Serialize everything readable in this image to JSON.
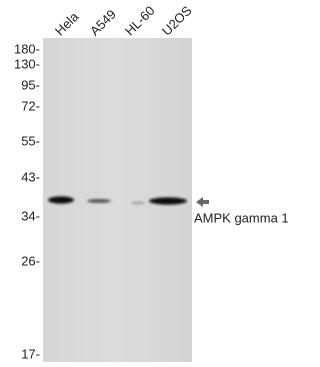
{
  "lanes": [
    "Hela",
    "A549",
    "HL-60",
    "U2OS"
  ],
  "markers": [
    "180-",
    "130-",
    "95-",
    "72-",
    "55-",
    "43-",
    "34-",
    "26-",
    "17-"
  ],
  "band_label": "AMPK gamma 1"
}
